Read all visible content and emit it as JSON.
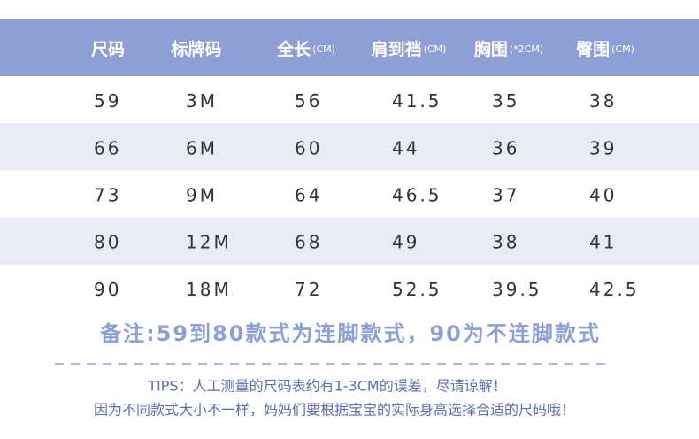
{
  "table": {
    "header": [
      {
        "label": "尺码"
      },
      {
        "label": "标牌码"
      },
      {
        "label": "全长",
        "unit": "(CM)"
      },
      {
        "label": "肩到裆",
        "unit": "(CM)"
      },
      {
        "label": "胸围",
        "unit": "(*2CM)"
      },
      {
        "label": "臀围",
        "unit": "(CM)"
      }
    ],
    "rows": [
      [
        "59",
        "3M",
        "56",
        "41.5",
        "35",
        "38"
      ],
      [
        "66",
        "6M",
        "60",
        "44",
        "36",
        "39"
      ],
      [
        "73",
        "9M",
        "64",
        "46.5",
        "37",
        "40"
      ],
      [
        "80",
        "12M",
        "68",
        "49",
        "38",
        "41"
      ],
      [
        "90",
        "18M",
        "72",
        "52.5",
        "39.5",
        "42.5"
      ]
    ]
  },
  "note": "备注:59到80款式为连脚款式，90为不连脚款式",
  "tips": [
    "TIPS：人工测量的尺码表约有1-3CM的误差，尽请谅解！",
    "因为不同款式大小不一样，妈妈们要根据宝宝的实际身高选择合适的尺码哦！"
  ]
}
